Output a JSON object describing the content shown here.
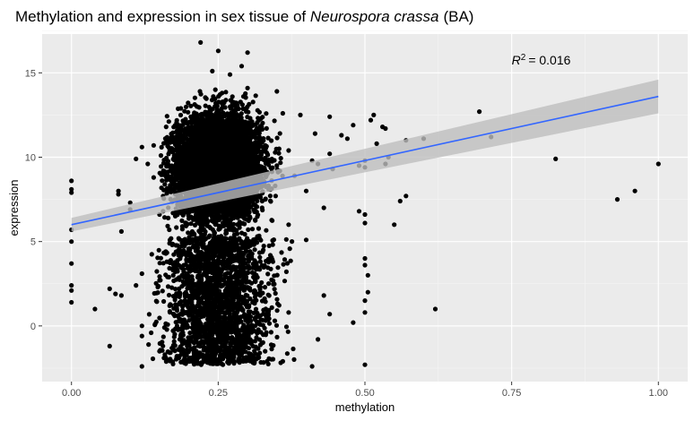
{
  "chart_data": {
    "type": "scatter",
    "title_prefix": "Methylation and expression in sex tissue of ",
    "title_species": "Neurospora crassa",
    "title_suffix": "(BA)",
    "xlabel": "methylation",
    "ylabel": "expression",
    "xlim": [
      -0.05,
      1.05
    ],
    "ylim": [
      -3.3,
      17.3
    ],
    "x_ticks": [
      0.0,
      0.25,
      0.5,
      0.75,
      1.0
    ],
    "x_tick_labels": [
      "0.00",
      "0.25",
      "0.50",
      "0.75",
      "1.00"
    ],
    "y_ticks": [
      0,
      5,
      10,
      15
    ],
    "y_tick_labels": [
      "0",
      "5",
      "10",
      "15"
    ],
    "grid": true,
    "annotation": {
      "r_label": "R",
      "r_exp": "2",
      "r_value": "= 0.016"
    },
    "fit": {
      "x": [
        0.0,
        1.0
      ],
      "y": [
        6.0,
        13.6
      ],
      "ci_upper": [
        6.4,
        14.6
      ],
      "ci_lower": [
        5.6,
        12.6
      ],
      "color": "#3366ff",
      "band_color": "#bebebe"
    },
    "cluster": {
      "center_x": 0.25,
      "center_y": 9.4
    },
    "points": [
      [
        0.0,
        8.6
      ],
      [
        0.0,
        8.1
      ],
      [
        0.0,
        7.9
      ],
      [
        0.0,
        5.7
      ],
      [
        0.0,
        5.0
      ],
      [
        0.0,
        3.7
      ],
      [
        0.0,
        2.4
      ],
      [
        0.0,
        2.1
      ],
      [
        0.0,
        1.4
      ],
      [
        0.04,
        1.0
      ],
      [
        0.065,
        2.2
      ],
      [
        0.065,
        -1.2
      ],
      [
        0.075,
        1.9
      ],
      [
        0.08,
        8.0
      ],
      [
        0.08,
        7.8
      ],
      [
        0.085,
        5.6
      ],
      [
        0.085,
        1.8
      ],
      [
        0.1,
        7.3
      ],
      [
        0.1,
        6.9
      ],
      [
        0.11,
        9.9
      ],
      [
        0.11,
        2.4
      ],
      [
        0.12,
        10.6
      ],
      [
        0.12,
        3.1
      ],
      [
        0.12,
        0.0
      ],
      [
        0.12,
        -0.6
      ],
      [
        0.12,
        -2.4
      ],
      [
        0.13,
        9.6
      ],
      [
        0.14,
        10.7
      ],
      [
        0.14,
        8.8
      ],
      [
        0.15,
        6.6
      ],
      [
        0.15,
        2.7
      ],
      [
        0.15,
        -1.5
      ],
      [
        0.3,
        16.2
      ],
      [
        0.22,
        16.8
      ],
      [
        0.29,
        15.4
      ],
      [
        0.25,
        16.3
      ],
      [
        0.24,
        15.1
      ],
      [
        0.27,
        14.9
      ],
      [
        0.3,
        14.1
      ],
      [
        0.35,
        13.9
      ],
      [
        0.36,
        12.6
      ],
      [
        0.39,
        12.5
      ],
      [
        0.415,
        11.4
      ],
      [
        0.44,
        12.4
      ],
      [
        0.46,
        11.3
      ],
      [
        0.48,
        11.9
      ],
      [
        0.51,
        12.2
      ],
      [
        0.515,
        12.5
      ],
      [
        0.53,
        11.8
      ],
      [
        0.535,
        11.7
      ],
      [
        0.47,
        11.1
      ],
      [
        0.52,
        10.8
      ],
      [
        0.6,
        11.1
      ],
      [
        0.57,
        11.0
      ],
      [
        0.44,
        10.2
      ],
      [
        0.37,
        10.4
      ],
      [
        0.41,
        9.8
      ],
      [
        0.42,
        9.6
      ],
      [
        0.445,
        9.3
      ],
      [
        0.49,
        9.5
      ],
      [
        0.5,
        9.8
      ],
      [
        0.5,
        9.4
      ],
      [
        0.535,
        9.6
      ],
      [
        0.54,
        10.0
      ],
      [
        0.35,
        9.5
      ],
      [
        0.38,
        8.9
      ],
      [
        0.4,
        8.0
      ],
      [
        0.43,
        7.0
      ],
      [
        0.49,
        6.8
      ],
      [
        0.5,
        6.6
      ],
      [
        0.5,
        6.1
      ],
      [
        0.55,
        6.0
      ],
      [
        0.56,
        7.4
      ],
      [
        0.57,
        7.7
      ],
      [
        0.37,
        6.0
      ],
      [
        0.4,
        5.1
      ],
      [
        0.5,
        4.0
      ],
      [
        0.5,
        3.6
      ],
      [
        0.505,
        3.0
      ],
      [
        0.505,
        2.0
      ],
      [
        0.5,
        1.5
      ],
      [
        0.5,
        0.8
      ],
      [
        0.37,
        0.8
      ],
      [
        0.43,
        1.8
      ],
      [
        0.44,
        0.7
      ],
      [
        0.48,
        0.2
      ],
      [
        0.42,
        -0.8
      ],
      [
        0.41,
        -2.4
      ],
      [
        0.5,
        -2.3
      ],
      [
        0.33,
        -1.5
      ],
      [
        0.36,
        -2.1
      ],
      [
        0.62,
        1.0
      ],
      [
        0.695,
        12.7
      ],
      [
        0.715,
        11.2
      ],
      [
        0.825,
        9.9
      ],
      [
        0.93,
        7.5
      ],
      [
        0.96,
        8.0
      ],
      [
        1.0,
        9.6
      ]
    ]
  }
}
